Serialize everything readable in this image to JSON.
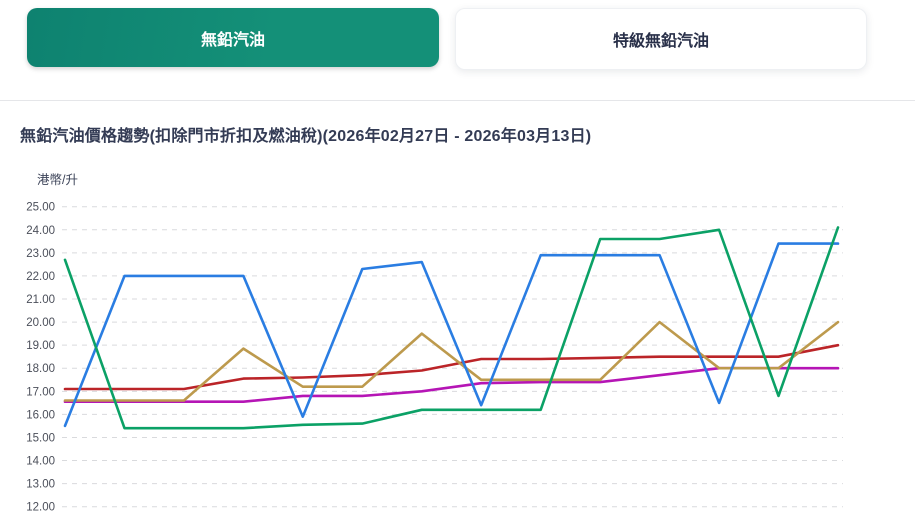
{
  "tabs": [
    {
      "label": "無鉛汽油",
      "active": true
    },
    {
      "label": "特級無鉛汽油",
      "active": false
    }
  ],
  "header": {
    "title": "無鉛汽油價格趨勢(扣除門市折扣及燃油稅)(2026年02月27日 - 2026年03月13日)",
    "unit_label": "港幣/升"
  },
  "colors": {
    "tab_active_bg": "#128a74",
    "tab_active_text": "#ffffff",
    "tab_inactive_text": "#293049",
    "title_text": "#333b54",
    "grid_line": "#d9dadd",
    "tick_text": "#4b4f5a"
  },
  "chart_data": {
    "type": "line",
    "title": "無鉛汽油價格趨勢(扣除門市折扣及燃油稅)(2026年02月27日 - 2026年03月13日)",
    "xlabel": "",
    "ylabel": "港幣/升",
    "ylim": [
      12,
      25
    ],
    "y_ticks": [
      "25.00",
      "24.00",
      "23.00",
      "22.00",
      "21.00",
      "20.00",
      "19.00",
      "18.00",
      "17.00",
      "16.00",
      "15.00",
      "14.00",
      "13.00",
      "12.00"
    ],
    "x_labels": [],
    "x_labels_visible": false,
    "num_points": 14,
    "date_range": "2026年02月27日 - 2026年03月13日",
    "grid": "horizontal-dashed",
    "legend": "none",
    "series": [
      {
        "name": "red-line",
        "color": "#bb2428",
        "values": [
          17.1,
          17.1,
          17.1,
          17.55,
          17.6,
          17.7,
          17.9,
          18.4,
          18.4,
          18.45,
          18.5,
          18.5,
          18.5,
          19.0
        ]
      },
      {
        "name": "magenta-line",
        "color": "#b515b5",
        "values": [
          16.55,
          16.55,
          16.55,
          16.55,
          16.8,
          16.8,
          17.0,
          17.35,
          17.4,
          17.4,
          17.7,
          18.0,
          18.0,
          18.0
        ]
      },
      {
        "name": "gold-line",
        "color": "#bd9a4d",
        "values": [
          16.6,
          16.6,
          16.6,
          18.85,
          17.2,
          17.2,
          19.5,
          17.5,
          17.5,
          17.5,
          20.0,
          18.0,
          18.0,
          20.0
        ]
      },
      {
        "name": "blue-line",
        "color": "#2a7de2",
        "values": [
          15.5,
          22.0,
          22.0,
          22.0,
          15.9,
          22.3,
          22.6,
          16.4,
          22.9,
          22.9,
          22.9,
          16.5,
          23.4,
          23.4
        ]
      },
      {
        "name": "green-line",
        "color": "#0ba166",
        "values": [
          22.7,
          15.4,
          15.4,
          15.4,
          15.55,
          15.6,
          16.2,
          16.2,
          16.2,
          23.6,
          23.6,
          24.0,
          16.8,
          24.1
        ]
      }
    ]
  }
}
